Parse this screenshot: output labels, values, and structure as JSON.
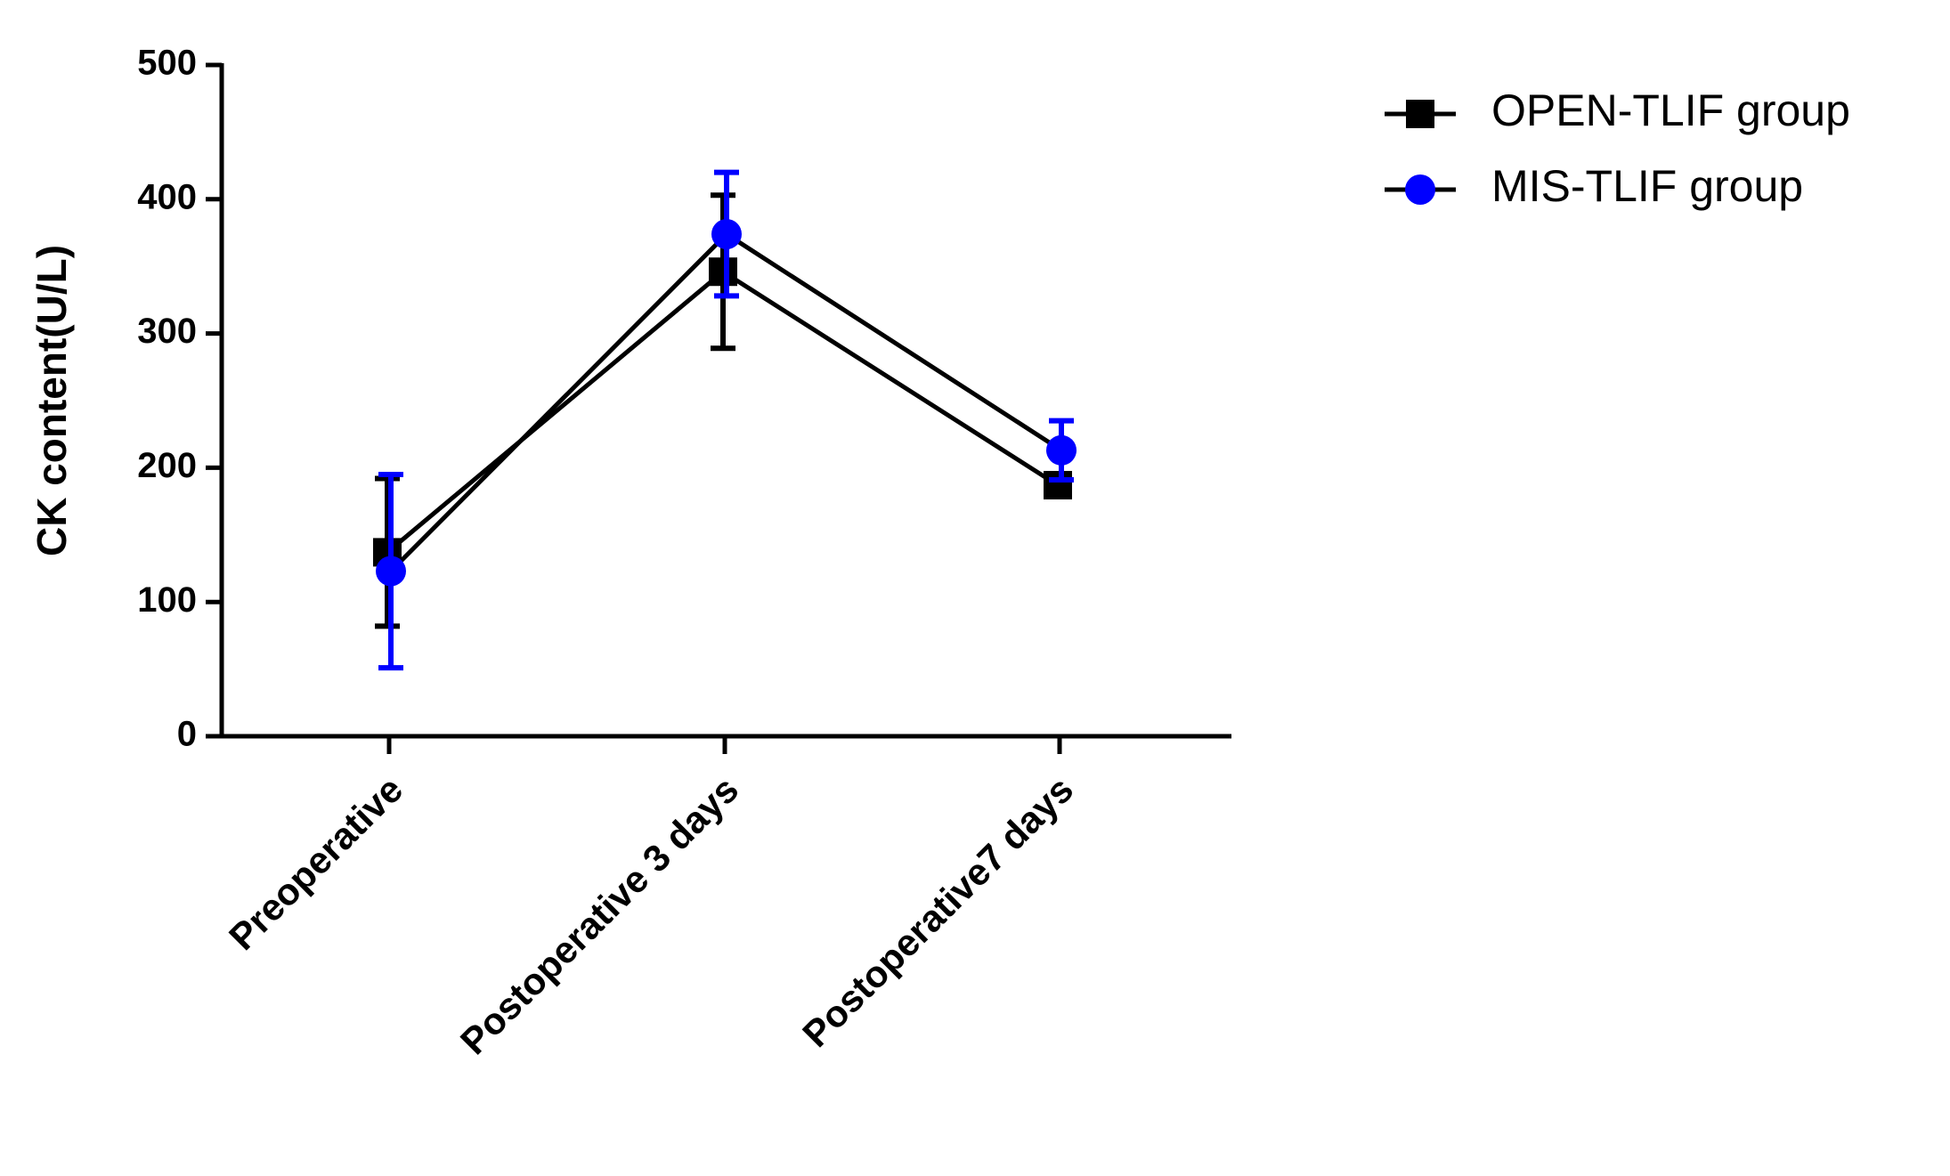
{
  "chart_data": {
    "type": "line",
    "y_label": "CK content(U/L)",
    "categories": [
      "Preoperative",
      "Postoperative 3 days",
      "Postoperative7 days"
    ],
    "series": [
      {
        "name": "OPEN-TLIF group",
        "color": "#000000",
        "marker": "square",
        "values": [
          137,
          346,
          187
        ],
        "errors": [
          55,
          57,
          5
        ]
      },
      {
        "name": "MIS-TLIF group",
        "color": "#0000ff",
        "marker": "circle",
        "values": [
          123,
          374,
          213
        ],
        "errors": [
          72,
          46,
          22
        ]
      }
    ],
    "line_color": "#000000",
    "ylim": [
      0,
      500
    ],
    "yticks": [
      0,
      100,
      200,
      300,
      400,
      500
    ],
    "legend": "top-right"
  }
}
